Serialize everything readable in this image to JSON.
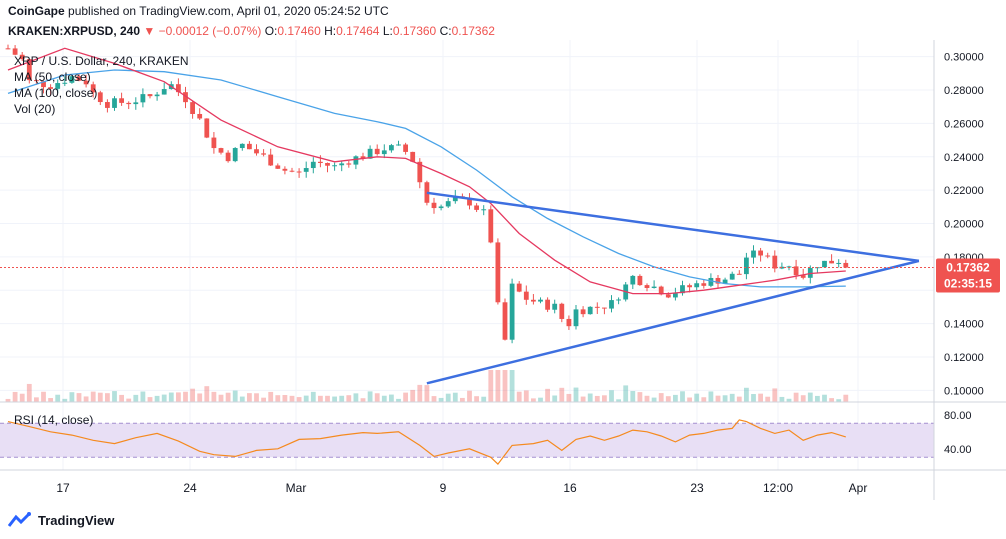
{
  "header": {
    "publisher": "CoinGape",
    "published_text": "published on TradingView.com, April 01, 2020 05:24:52 UTC",
    "symbol": "KRAKEN:XRPUSD, 240",
    "change": "▼ −0.00012 (−0.07%)",
    "ohlc": [
      {
        "label": "O:",
        "value": "0.17460"
      },
      {
        "label": "H:",
        "value": "0.17464"
      },
      {
        "label": "L:",
        "value": "0.17360"
      },
      {
        "label": "C:",
        "value": "0.17362"
      }
    ]
  },
  "legend": {
    "title": "XRP / U.S. Dollar, 240, KRAKEN",
    "ma50": "MA (50, close)",
    "ma100": "MA (100, close)",
    "vol": "Vol (20)",
    "rsi": "RSI (14, close)"
  },
  "price_axis": {
    "labels": [
      "0.30000",
      "0.28000",
      "0.26000",
      "0.24000",
      "0.22000",
      "0.20000",
      "0.18000",
      "0.14000",
      "0.12000",
      "0.10000"
    ],
    "last_price": "0.17362",
    "countdown": "02:35:15"
  },
  "rsi_axis": {
    "labels": [
      "80.00",
      "40.00"
    ]
  },
  "time_axis": {
    "labels": [
      "17",
      "24",
      "Mar",
      "9",
      "16",
      "23",
      "12:00",
      "Apr"
    ]
  },
  "footer": {
    "brand": "TradingView"
  },
  "colors": {
    "up": "#26a69a",
    "down": "#ef5350",
    "ma50": "#e53960",
    "ma100": "#4aa3e8",
    "trendline": "#3d6fe0",
    "rsi": "#f58a1f",
    "rsi_band": "#e8dff5",
    "last_price": "#ef5350"
  },
  "chart_data": {
    "type": "candlestick",
    "y_range": [
      0.093,
      0.31
    ],
    "x_ticks": [
      "17",
      "24",
      "Mar",
      "9",
      "16",
      "23",
      "12:00",
      "Apr"
    ],
    "price_path": [
      [
        0,
        0.305
      ],
      [
        2,
        0.298
      ],
      [
        3,
        0.285
      ],
      [
        6,
        0.283
      ],
      [
        9,
        0.288
      ],
      [
        11,
        0.285
      ],
      [
        12,
        0.278
      ],
      [
        14,
        0.272
      ],
      [
        17,
        0.273
      ],
      [
        20,
        0.276
      ],
      [
        22,
        0.282
      ],
      [
        23,
        0.283
      ],
      [
        25,
        0.275
      ],
      [
        27,
        0.262
      ],
      [
        29,
        0.245
      ],
      [
        31,
        0.24
      ],
      [
        33,
        0.247
      ],
      [
        36,
        0.24
      ],
      [
        39,
        0.232
      ],
      [
        41,
        0.23
      ],
      [
        43,
        0.237
      ],
      [
        46,
        0.234
      ],
      [
        48,
        0.238
      ],
      [
        51,
        0.242
      ],
      [
        53,
        0.245
      ],
      [
        55,
        0.245
      ],
      [
        56,
        0.243
      ],
      [
        57,
        0.238
      ],
      [
        58,
        0.225
      ],
      [
        59,
        0.213
      ],
      [
        61,
        0.21
      ],
      [
        63,
        0.214
      ],
      [
        65,
        0.213
      ],
      [
        67,
        0.206
      ],
      [
        68,
        0.19
      ],
      [
        69,
        0.15
      ],
      [
        70,
        0.13
      ],
      [
        71,
        0.162
      ],
      [
        73,
        0.155
      ],
      [
        75,
        0.152
      ],
      [
        77,
        0.15
      ],
      [
        78,
        0.143
      ],
      [
        79,
        0.14
      ],
      [
        80,
        0.148
      ],
      [
        83,
        0.15
      ],
      [
        85,
        0.152
      ],
      [
        88,
        0.168
      ],
      [
        91,
        0.162
      ],
      [
        93,
        0.158
      ],
      [
        96,
        0.162
      ],
      [
        98,
        0.165
      ],
      [
        101,
        0.167
      ],
      [
        103,
        0.17
      ],
      [
        104,
        0.18
      ],
      [
        106,
        0.182
      ],
      [
        108,
        0.175
      ],
      [
        110,
        0.175
      ],
      [
        112,
        0.169
      ],
      [
        114,
        0.176
      ],
      [
        117,
        0.178
      ],
      [
        118,
        0.1736
      ]
    ],
    "ma50": [
      [
        0,
        0.292
      ],
      [
        8,
        0.305
      ],
      [
        15,
        0.296
      ],
      [
        22,
        0.285
      ],
      [
        30,
        0.262
      ],
      [
        38,
        0.246
      ],
      [
        46,
        0.237
      ],
      [
        52,
        0.24
      ],
      [
        56,
        0.239
      ],
      [
        61,
        0.23
      ],
      [
        65,
        0.222
      ],
      [
        68,
        0.212
      ],
      [
        72,
        0.194
      ],
      [
        77,
        0.178
      ],
      [
        82,
        0.165
      ],
      [
        88,
        0.158
      ],
      [
        93,
        0.158
      ],
      [
        98,
        0.16
      ],
      [
        103,
        0.163
      ],
      [
        108,
        0.166
      ],
      [
        113,
        0.17
      ],
      [
        118,
        0.1715
      ]
    ],
    "ma100": [
      [
        0,
        0.278
      ],
      [
        8,
        0.289
      ],
      [
        15,
        0.292
      ],
      [
        22,
        0.291
      ],
      [
        30,
        0.286
      ],
      [
        38,
        0.276
      ],
      [
        46,
        0.266
      ],
      [
        52,
        0.261
      ],
      [
        56,
        0.257
      ],
      [
        61,
        0.246
      ],
      [
        66,
        0.232
      ],
      [
        71,
        0.216
      ],
      [
        76,
        0.203
      ],
      [
        81,
        0.192
      ],
      [
        86,
        0.182
      ],
      [
        91,
        0.174
      ],
      [
        96,
        0.168
      ],
      [
        101,
        0.164
      ],
      [
        106,
        0.162
      ],
      [
        112,
        0.162
      ],
      [
        118,
        0.1625
      ]
    ],
    "trendline_upper": [
      [
        0.2184,
        59
      ],
      [
        0.1776,
        128.3
      ]
    ],
    "trendline_lower": [
      [
        0.1042,
        59
      ],
      [
        0.1776,
        128.3
      ]
    ],
    "last_price": 0.17362,
    "rsi": {
      "y_range": [
        15,
        95
      ],
      "band": [
        70,
        30
      ],
      "values": [
        [
          0,
          72
        ],
        [
          3,
          66
        ],
        [
          6,
          60
        ],
        [
          9,
          56
        ],
        [
          12,
          50
        ],
        [
          15,
          46
        ],
        [
          18,
          53
        ],
        [
          21,
          58
        ],
        [
          24,
          49
        ],
        [
          27,
          37
        ],
        [
          29,
          33
        ],
        [
          32,
          31
        ],
        [
          35,
          38
        ],
        [
          38,
          40
        ],
        [
          41,
          51
        ],
        [
          44,
          52
        ],
        [
          47,
          56
        ],
        [
          50,
          59
        ],
        [
          52,
          58
        ],
        [
          55,
          60
        ],
        [
          58,
          44
        ],
        [
          60,
          31
        ],
        [
          62,
          35
        ],
        [
          65,
          40
        ],
        [
          68,
          30
        ],
        [
          69,
          22
        ],
        [
          71,
          44
        ],
        [
          74,
          46
        ],
        [
          76,
          50
        ],
        [
          78,
          38
        ],
        [
          80,
          51
        ],
        [
          82,
          55
        ],
        [
          84,
          50
        ],
        [
          86,
          55
        ],
        [
          88,
          62
        ],
        [
          90,
          60
        ],
        [
          92,
          55
        ],
        [
          94,
          48
        ],
        [
          96,
          56
        ],
        [
          98,
          58
        ],
        [
          100,
          62
        ],
        [
          102,
          64
        ],
        [
          103,
          74
        ],
        [
          104,
          72
        ],
        [
          106,
          64
        ],
        [
          108,
          58
        ],
        [
          110,
          62
        ],
        [
          112,
          50
        ],
        [
          114,
          56
        ],
        [
          116,
          59
        ],
        [
          118,
          54
        ]
      ]
    }
  }
}
